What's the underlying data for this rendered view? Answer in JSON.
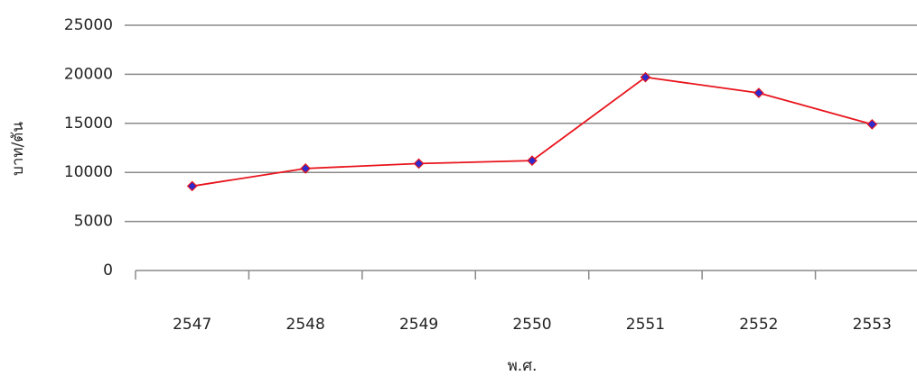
{
  "chart_data": {
    "type": "line",
    "x_label": "พ.ศ.",
    "y_label": "บาท/ตัน",
    "categories": [
      "2547",
      "2548",
      "2549",
      "2550",
      "2551",
      "2552",
      "2553"
    ],
    "series": [
      {
        "name": "บาท/ตัน",
        "color": "#e8141c",
        "marker_color": "#2b2bd0",
        "values": [
          8600,
          10400,
          10900,
          11200,
          19700,
          18100,
          14900
        ]
      }
    ],
    "ylim": [
      0,
      25000
    ],
    "yticks": [
      0,
      5000,
      10000,
      15000,
      20000,
      25000
    ],
    "grid": true
  }
}
